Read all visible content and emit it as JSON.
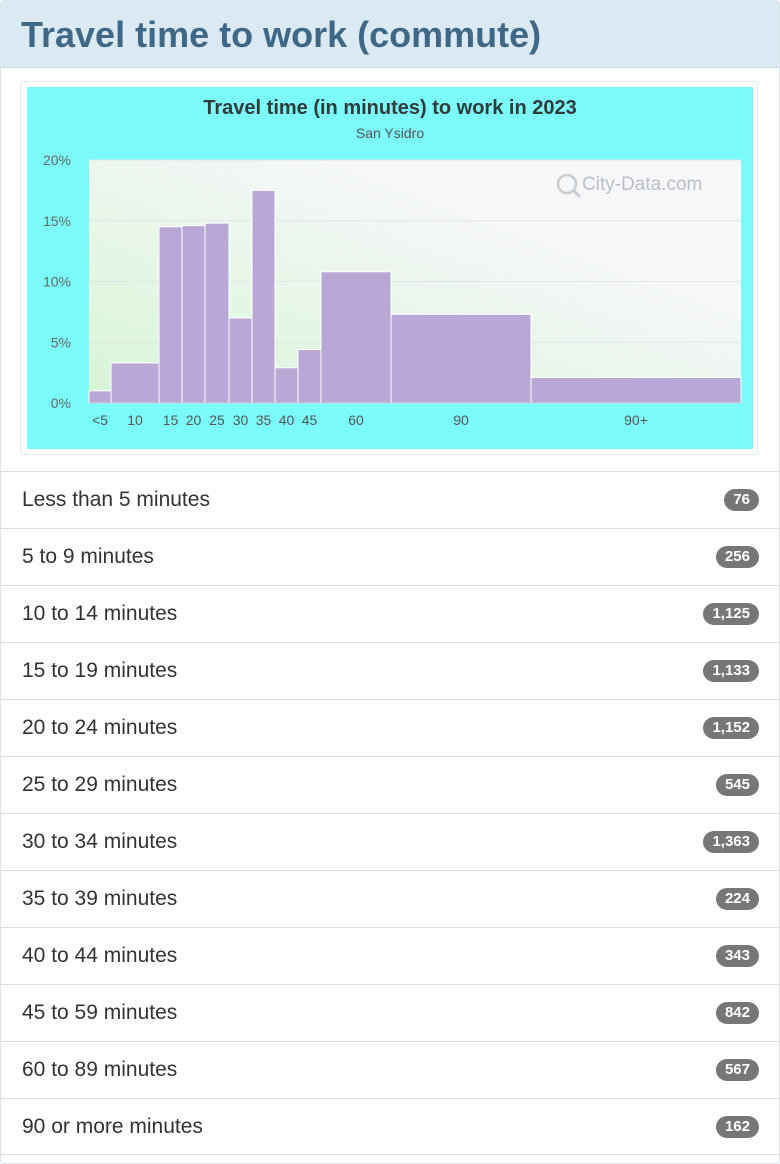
{
  "header": {
    "title": "Travel time to work (commute)"
  },
  "chart_data": {
    "type": "bar",
    "title": "Travel time (in minutes) to work in 2023",
    "subtitle": "San Ysidro",
    "watermark": "City-Data.com",
    "ylim": [
      0,
      20
    ],
    "yticks": [
      "0%",
      "5%",
      "10%",
      "15%",
      "20%"
    ],
    "bin_edges": [
      0,
      5,
      10,
      15,
      20,
      25,
      30,
      35,
      40,
      45,
      60,
      90,
      120
    ],
    "x_tick_labels": [
      "<5",
      "10",
      "15",
      "20",
      "25",
      "30",
      "35",
      "40",
      "45",
      "60",
      "90",
      "90+"
    ],
    "values": [
      1.0,
      3.3,
      14.5,
      14.6,
      14.8,
      7.0,
      17.5,
      2.9,
      4.4,
      10.8,
      7.3,
      2.1
    ],
    "bar_color": "#b9a8d6",
    "background_color": "#7bfcfb",
    "plot_gradient_start": "#d7f5d5",
    "plot_gradient_end": "#f6f7f9",
    "grid": true
  },
  "rows": [
    {
      "label": "Less than 5 minutes",
      "value": "76"
    },
    {
      "label": "5 to 9 minutes",
      "value": "256"
    },
    {
      "label": "10 to 14 minutes",
      "value": "1,125"
    },
    {
      "label": "15 to 19 minutes",
      "value": "1,133"
    },
    {
      "label": "20 to 24 minutes",
      "value": "1,152"
    },
    {
      "label": "25 to 29 minutes",
      "value": "545"
    },
    {
      "label": "30 to 34 minutes",
      "value": "1,363"
    },
    {
      "label": "35 to 39 minutes",
      "value": "224"
    },
    {
      "label": "40 to 44 minutes",
      "value": "343"
    },
    {
      "label": "45 to 59 minutes",
      "value": "842"
    },
    {
      "label": "60 to 89 minutes",
      "value": "567"
    },
    {
      "label": "90 or more minutes",
      "value": "162"
    }
  ]
}
